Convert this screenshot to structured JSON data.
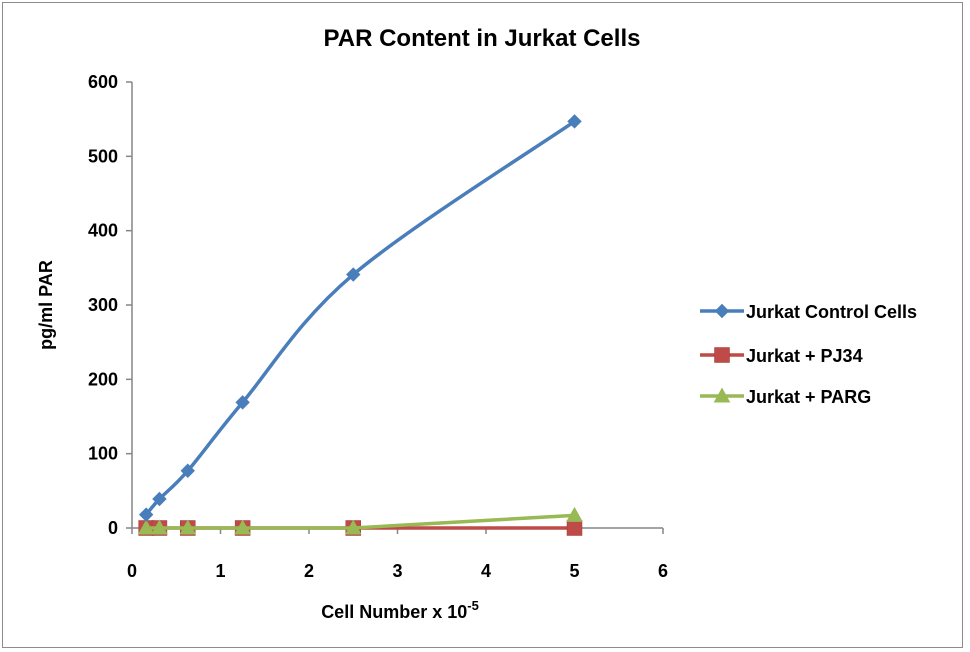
{
  "chart_data": {
    "type": "line",
    "title": "PAR Content in Jurkat Cells",
    "xlabel": "Cell Number x 10",
    "xlabel_exponent": "-5",
    "ylabel": "pg/ml PAR",
    "xlim": [
      0,
      6
    ],
    "ylim": [
      0,
      600
    ],
    "x_ticks": [
      0,
      1,
      2,
      3,
      4,
      5,
      6
    ],
    "y_ticks": [
      0,
      100,
      200,
      300,
      400,
      500,
      600
    ],
    "grid": false,
    "legend_position": "right",
    "series": [
      {
        "name": "Jurkat Control Cells",
        "color": "#4a7ebb",
        "marker": "diamond",
        "smooth": true,
        "x": [
          0.16,
          0.31,
          0.63,
          1.25,
          2.5,
          5
        ],
        "y": [
          18,
          39,
          77,
          169,
          341,
          547
        ]
      },
      {
        "name": "Jurkat + PJ34",
        "color": "#be4b48",
        "marker": "square",
        "smooth": false,
        "x": [
          0.16,
          0.31,
          0.63,
          1.25,
          2.5,
          5
        ],
        "y": [
          0,
          0,
          0,
          0,
          0,
          0
        ]
      },
      {
        "name": "Jurkat + PARG",
        "color": "#98b954",
        "marker": "triangle",
        "smooth": false,
        "x": [
          0.16,
          0.31,
          0.63,
          1.25,
          2.5,
          5
        ],
        "y": [
          0,
          0,
          0,
          0,
          0,
          17
        ]
      }
    ]
  }
}
